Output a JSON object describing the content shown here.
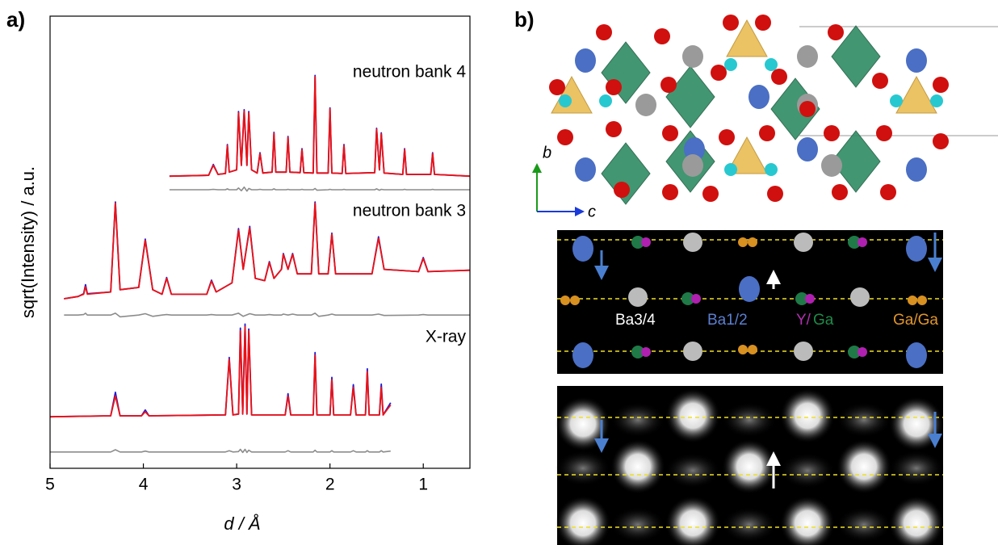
{
  "panel_labels": [
    "a)",
    "b)"
  ],
  "chart_data": {
    "type": "line",
    "xlabel": "d / Å",
    "ylabel": "sqrt(Intensity) / a.u.",
    "xlim": [
      5,
      0.5
    ],
    "xticks": [
      5,
      4,
      3,
      2,
      1
    ],
    "ylim": [
      0,
      100
    ],
    "colors": {
      "observed": "#1a1adb",
      "calculated": "#ee1111",
      "difference": "#8c8c8c"
    },
    "datasets": [
      {
        "label": "neutron bank 4",
        "x": [
          3.72,
          3.3,
          3.25,
          3.2,
          3.12,
          3.1,
          3.08,
          3.0,
          2.98,
          2.95,
          2.92,
          2.89,
          2.87,
          2.84,
          2.78,
          2.75,
          2.72,
          2.62,
          2.6,
          2.58,
          2.47,
          2.45,
          2.43,
          2.32,
          2.3,
          2.28,
          2.18,
          2.16,
          2.14,
          2.02,
          2.0,
          1.98,
          1.87,
          1.85,
          1.83,
          1.52,
          1.5,
          1.47,
          1.45,
          1.42,
          1.22,
          1.2,
          1.18,
          0.92,
          0.9,
          0.88,
          0.5
        ],
        "observed": [
          64.6,
          64.8,
          67.2,
          65,
          65.2,
          71.6,
          65.5,
          66,
          78.9,
          67,
          79.3,
          67,
          78.9,
          66,
          65.3,
          69.8,
          65.3,
          65.5,
          74.3,
          65.5,
          65.5,
          73.4,
          65.5,
          65.4,
          70.7,
          65.4,
          65.3,
          86.9,
          65.3,
          65.3,
          79.7,
          65.3,
          65.2,
          71.6,
          65.2,
          65.4,
          75.2,
          66,
          74.2,
          65.3,
          65,
          70.7,
          65,
          65,
          69.8,
          65,
          64.6
        ],
        "calculated": [
          64.6,
          64.8,
          67,
          65,
          65.2,
          71.4,
          65.5,
          66,
          78.6,
          67,
          79,
          67,
          78.6,
          66,
          65.3,
          69.6,
          65.3,
          65.5,
          74.1,
          65.5,
          65.5,
          73.2,
          65.5,
          65.4,
          70.5,
          65.4,
          65.3,
          86.6,
          65.3,
          65.3,
          79.5,
          65.3,
          65.2,
          71.4,
          65.2,
          65.4,
          75,
          66,
          74,
          65.3,
          65,
          70.5,
          65,
          65,
          69.6,
          65,
          64.6
        ],
        "difference": [
          61.6,
          61.6,
          61.7,
          61.6,
          61.6,
          61.8,
          61.6,
          61.6,
          62,
          61.4,
          62.2,
          61.3,
          61.9,
          61.6,
          61.6,
          61.7,
          61.6,
          61.6,
          61.8,
          61.6,
          61.6,
          61.7,
          61.6,
          61.6,
          61.7,
          61.6,
          61.6,
          61.9,
          61.5,
          61.6,
          61.7,
          61.6,
          61.6,
          61.7,
          61.6,
          61.6,
          61.8,
          61.5,
          61.7,
          61.6,
          61.6,
          61.7,
          61.6,
          61.6,
          61.7,
          61.6,
          61.6
        ]
      },
      {
        "label": "neutron bank 3",
        "x": [
          4.85,
          4.7,
          4.64,
          4.62,
          4.6,
          4.35,
          4.3,
          4.25,
          4.05,
          3.98,
          3.9,
          3.8,
          3.75,
          3.7,
          3.32,
          3.27,
          3.22,
          3.05,
          2.98,
          2.93,
          2.86,
          2.8,
          2.7,
          2.65,
          2.6,
          2.52,
          2.5,
          2.45,
          2.4,
          2.35,
          2.2,
          2.16,
          2.12,
          2.02,
          1.98,
          1.94,
          1.55,
          1.48,
          1.42,
          1.05,
          1.0,
          0.95,
          0.5
        ],
        "observed": [
          37.5,
          38,
          38.6,
          40.6,
          38.6,
          39,
          58.9,
          39.5,
          40,
          50.7,
          39.5,
          38.5,
          42.2,
          38.5,
          38.5,
          41.6,
          39,
          41,
          53,
          44,
          53.5,
          42,
          41.5,
          45.7,
          42,
          44,
          47.5,
          44,
          47.5,
          43,
          43,
          58.9,
          43,
          43,
          52,
          43,
          43,
          51.2,
          44,
          43.5,
          46.6,
          43.5,
          43.8
        ],
        "calculated": [
          37.5,
          38,
          38.5,
          40.2,
          38.5,
          39,
          58.6,
          39.5,
          40,
          50.4,
          39.5,
          38.5,
          42,
          38.5,
          38.5,
          41.4,
          39,
          41,
          52.7,
          44,
          53.2,
          42,
          41.5,
          45.5,
          42,
          44,
          47.3,
          44,
          47.3,
          43,
          43,
          58.6,
          43,
          43,
          51.8,
          43,
          43,
          50.9,
          44,
          43.5,
          46.4,
          43.5,
          43.8
        ],
        "difference": [
          33.9,
          33.9,
          34,
          34.3,
          33.9,
          33.9,
          34.3,
          33.5,
          33.9,
          34.2,
          33.6,
          33.9,
          34,
          33.9,
          33.9,
          34,
          33.9,
          33.9,
          34.3,
          33.6,
          34.2,
          33.9,
          33.9,
          34,
          33.9,
          33.9,
          34.1,
          33.9,
          34.1,
          33.9,
          33.9,
          34.3,
          33.6,
          33.9,
          34.1,
          33.9,
          33.9,
          34.1,
          33.8,
          33.9,
          34,
          33.9,
          33.9
        ]
      },
      {
        "label": "X-ray",
        "x": [
          5.0,
          4.35,
          4.3,
          4.25,
          4.02,
          3.98,
          3.94,
          3.12,
          3.08,
          3.04,
          2.98,
          2.96,
          2.935,
          2.91,
          2.89,
          2.87,
          2.84,
          2.48,
          2.45,
          2.42,
          2.18,
          2.16,
          2.14,
          2.0,
          1.98,
          1.96,
          1.78,
          1.75,
          1.72,
          1.62,
          1.6,
          1.58,
          1.47,
          1.45,
          1.43,
          1.35
        ],
        "observed": [
          11.4,
          11.6,
          16.8,
          11.6,
          11.6,
          12.9,
          11.6,
          11.8,
          24.5,
          11.8,
          12,
          31,
          12,
          31.9,
          12,
          30.8,
          11.8,
          11.8,
          16.5,
          11.8,
          11.8,
          25.6,
          11.8,
          11.8,
          20.1,
          11.8,
          11.8,
          18.5,
          11.8,
          11.8,
          22,
          11.8,
          11.8,
          18.6,
          11.8,
          14.5
        ],
        "calculated": [
          11.4,
          11.6,
          16,
          11.6,
          11.6,
          12.5,
          11.6,
          11.8,
          24.1,
          11.8,
          12,
          30.4,
          12,
          31.3,
          12,
          30.4,
          11.8,
          11.8,
          16,
          11.8,
          11.8,
          25,
          11.8,
          11.8,
          19.6,
          11.8,
          11.8,
          17.9,
          11.8,
          11.8,
          21.4,
          11.8,
          11.8,
          17.9,
          11.8,
          14
        ],
        "difference": [
          3.6,
          3.6,
          4.1,
          3.6,
          3.6,
          3.8,
          3.6,
          3.6,
          3.9,
          3.6,
          3.7,
          4.2,
          3.5,
          4.2,
          3.5,
          4,
          3.6,
          3.6,
          3.9,
          3.6,
          3.6,
          4,
          3.6,
          3.6,
          3.9,
          3.6,
          3.6,
          3.9,
          3.6,
          3.6,
          3.9,
          3.6,
          3.6,
          3.9,
          3.6,
          3.8
        ]
      }
    ]
  },
  "structure": {
    "axes": [
      "b",
      "c"
    ],
    "labels": [
      "Ba3/4",
      "Ba1/2",
      "Y/",
      "Ga",
      "Ga/Ga"
    ]
  }
}
